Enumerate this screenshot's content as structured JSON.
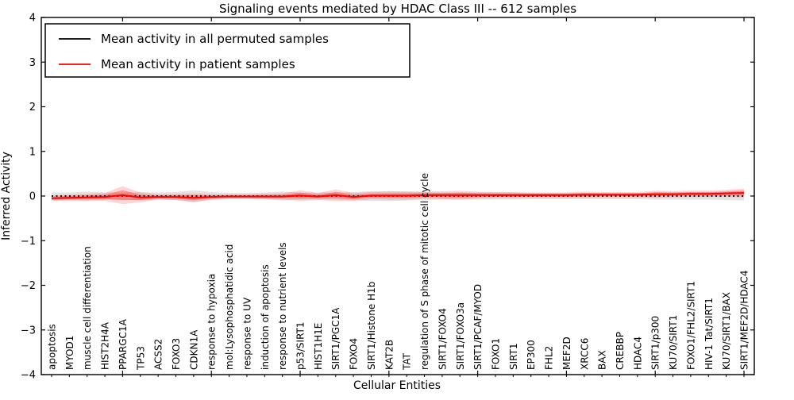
{
  "figure": {
    "title": "Signaling events mediated by HDAC Class III -- 612 samples",
    "xlabel": "Cellular Entities",
    "ylabel": "Inferred Activity"
  },
  "legend": {
    "position": "upper left",
    "items": [
      {
        "label": "Mean activity in all permuted samples",
        "color": "#000000"
      },
      {
        "label": "Mean activity in patient samples",
        "color": "#ff0000"
      }
    ]
  },
  "chart_data": {
    "type": "line",
    "title": "Signaling events mediated by HDAC Class III -- 612 samples",
    "xlabel": "Cellular Entities",
    "ylabel": "Inferred Activity",
    "ylim": [
      -4,
      4
    ],
    "yticks": [
      -4,
      -3,
      -2,
      -1,
      0,
      1,
      2,
      3,
      4
    ],
    "grid": false,
    "legend_position": "upper left",
    "x_tick_label_rotation_deg": 90,
    "categories": [
      "apoptosis",
      "MYOD1",
      "muscle cell differentiation",
      "HIST2H4A",
      "PPARGC1A",
      "TP53",
      "ACSS2",
      "FOXO3",
      "CDKN1A",
      "response to hypoxia",
      "mol:Lysophosphatidic acid",
      "response to UV",
      "induction of apoptosis",
      "response to nutrient levels",
      "p53/SIRT1",
      "HIST1H1E",
      "SIRT1/PGC1A",
      "FOXO4",
      "SIRT1/Histone H1b",
      "KAT2B",
      "TAT",
      "regulation of S phase of mitotic cell cycle",
      "SIRT1/FOXO4",
      "SIRT1/FOXO3a",
      "SIRT1/PCAF/MYOD",
      "FOXO1",
      "SIRT1",
      "EP300",
      "FHL2",
      "MEF2D",
      "XRCC6",
      "BAX",
      "CREBBP",
      "HDAC4",
      "SIRT1/p300",
      "KU70/SIRT1",
      "FOXO1/FHL2/SIRT1",
      "HIV-1 Tat/SIRT1",
      "KU70/SIRT1/BAX",
      "SIRT1/MEF2D/HDAC4"
    ],
    "series": [
      {
        "name": "Mean activity in all permuted samples",
        "color": "#000000",
        "line_style": "dotted",
        "values": [
          0,
          0,
          0,
          0,
          0,
          0,
          0,
          0,
          0,
          0,
          0,
          0,
          0,
          0,
          0,
          0,
          0,
          0,
          0,
          0,
          0,
          0,
          0,
          0,
          0,
          0,
          0,
          0,
          0,
          0,
          0,
          0,
          0,
          0,
          0,
          0,
          0,
          0,
          0,
          0
        ],
        "band_halfwidth": [
          0.08,
          0.08,
          0.1,
          0.08,
          0.08,
          0.09,
          0.08,
          0.09,
          0.13,
          0.09,
          0.07,
          0.07,
          0.08,
          0.1,
          0.08,
          0.08,
          0.08,
          0.09,
          0.11,
          0.11,
          0.1,
          0.09,
          0.08,
          0.08,
          0.08,
          0.08,
          0.08,
          0.07,
          0.07,
          0.07,
          0.07,
          0.07,
          0.07,
          0.07,
          0.08,
          0.08,
          0.08,
          0.08,
          0.09,
          0.1
        ],
        "band_color": "rgba(0,0,0,0.11)"
      },
      {
        "name": "Mean activity in patient samples",
        "color": "#ff0000",
        "line_style": "solid",
        "values": [
          -0.05,
          -0.04,
          -0.03,
          -0.02,
          0.02,
          -0.03,
          -0.02,
          -0.02,
          -0.04,
          -0.02,
          -0.01,
          -0.01,
          -0.01,
          -0.01,
          0.01,
          -0.01,
          0.02,
          -0.02,
          0.01,
          0.01,
          0.01,
          0.02,
          0.02,
          0.02,
          0.02,
          0.02,
          0.02,
          0.02,
          0.02,
          0.02,
          0.03,
          0.03,
          0.03,
          0.03,
          0.04,
          0.04,
          0.05,
          0.05,
          0.06,
          0.07
        ],
        "band_halfwidth": [
          0.06,
          0.07,
          0.08,
          0.09,
          0.2,
          0.11,
          0.06,
          0.07,
          0.1,
          0.06,
          0.05,
          0.05,
          0.06,
          0.07,
          0.12,
          0.08,
          0.13,
          0.09,
          0.08,
          0.09,
          0.09,
          0.08,
          0.09,
          0.1,
          0.08,
          0.07,
          0.07,
          0.06,
          0.06,
          0.06,
          0.07,
          0.06,
          0.06,
          0.06,
          0.08,
          0.07,
          0.07,
          0.07,
          0.08,
          0.1
        ],
        "band_color": "rgba(255,0,0,0.16)",
        "inner_band_color": "rgba(255,0,0,0.30)"
      }
    ]
  }
}
